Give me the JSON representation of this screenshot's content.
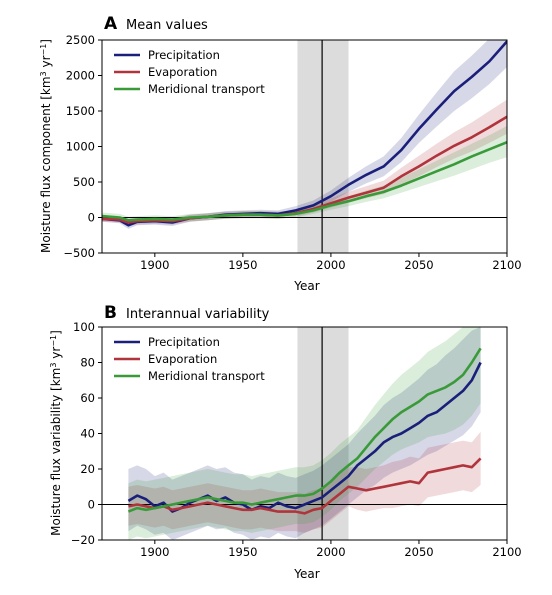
{
  "panels": [
    {
      "letter": "A",
      "title": "Mean values",
      "ylabel_prefix": "Moisture flux component [km",
      "ylabel_sup": "3",
      "ylabel_mid": " yr",
      "ylabel_sup2": "−1",
      "ylabel_suffix": "]",
      "xlabel": "Year"
    },
    {
      "letter": "B",
      "title": "Interannual variability",
      "ylabel_prefix": "Moisture flux variability [km",
      "ylabel_sup": "3",
      "ylabel_mid": " yr",
      "ylabel_sup2": "−1",
      "ylabel_suffix": "]",
      "xlabel": "Year"
    }
  ],
  "colors": {
    "precipitation": "#1a1f7a",
    "evaporation": "#b0343b",
    "meridional": "#3a9a3a",
    "shade": "#dcdcdc"
  },
  "chart_data": [
    {
      "type": "line",
      "title": "Mean values",
      "xlabel": "Year",
      "ylabel": "Moisture flux component [km3 yr−1]",
      "xlim": [
        1870,
        2100
      ],
      "ylim": [
        -500,
        2500
      ],
      "xticks": [
        1900,
        1950,
        2000,
        2050,
        2100
      ],
      "yticks": [
        -500,
        0,
        500,
        1000,
        1500,
        2000,
        2500
      ],
      "shaded_period": [
        1981,
        2010
      ],
      "vline": 1995,
      "hline": 0,
      "legend_position": "top-left",
      "x": [
        1870,
        1880,
        1885,
        1890,
        1900,
        1910,
        1920,
        1930,
        1940,
        1950,
        1960,
        1970,
        1980,
        1990,
        2000,
        2010,
        2020,
        2030,
        2040,
        2050,
        2060,
        2070,
        2080,
        2090,
        2100
      ],
      "series": [
        {
          "name": "Precipitation",
          "values": [
            -20,
            -40,
            -110,
            -60,
            -50,
            -70,
            -10,
            10,
            40,
            50,
            60,
            50,
            100,
            170,
            300,
            460,
            600,
            720,
            950,
            1250,
            1520,
            1780,
            1980,
            2200,
            2480
          ],
          "lower": [
            -60,
            -80,
            -160,
            -110,
            -100,
            -120,
            -60,
            -40,
            -10,
            0,
            10,
            0,
            50,
            110,
            220,
            360,
            480,
            580,
            780,
            1050,
            1280,
            1500,
            1680,
            1880,
            2120
          ],
          "upper": [
            20,
            0,
            -60,
            -10,
            0,
            -20,
            40,
            60,
            90,
            100,
            110,
            100,
            160,
            240,
            380,
            560,
            720,
            860,
            1120,
            1450,
            1760,
            2060,
            2280,
            2520,
            2500
          ]
        },
        {
          "name": "Evaporation",
          "values": [
            -20,
            -30,
            -70,
            -50,
            -40,
            -50,
            -10,
            10,
            30,
            40,
            40,
            30,
            60,
            120,
            200,
            280,
            350,
            420,
            580,
            720,
            870,
            1010,
            1130,
            1270,
            1420
          ],
          "lower": [
            -60,
            -70,
            -120,
            -100,
            -90,
            -100,
            -60,
            -40,
            -20,
            -10,
            -10,
            -20,
            10,
            70,
            140,
            210,
            270,
            330,
            460,
            580,
            710,
            830,
            930,
            1050,
            1180
          ],
          "upper": [
            20,
            10,
            -20,
            0,
            10,
            0,
            40,
            60,
            80,
            90,
            90,
            80,
            110,
            180,
            270,
            360,
            440,
            520,
            700,
            870,
            1040,
            1200,
            1340,
            1500,
            1660
          ]
        },
        {
          "name": "Meridional transport",
          "values": [
            20,
            0,
            -40,
            -30,
            -20,
            -30,
            0,
            10,
            30,
            40,
            40,
            30,
            50,
            100,
            170,
            230,
            300,
            360,
            450,
            550,
            650,
            750,
            860,
            960,
            1060
          ],
          "lower": [
            -30,
            -50,
            -90,
            -80,
            -70,
            -80,
            -50,
            -40,
            -20,
            -10,
            -10,
            -20,
            0,
            50,
            110,
            160,
            220,
            270,
            350,
            430,
            510,
            590,
            680,
            770,
            850
          ],
          "upper": [
            70,
            50,
            10,
            20,
            30,
            20,
            50,
            60,
            80,
            90,
            90,
            80,
            100,
            160,
            230,
            300,
            380,
            450,
            560,
            680,
            800,
            920,
            1040,
            1160,
            1290
          ]
        }
      ]
    },
    {
      "type": "line",
      "title": "Interannual variability",
      "xlabel": "Year",
      "ylabel": "Moisture flux variability [km3 yr−1]",
      "xlim": [
        1870,
        2100
      ],
      "ylim": [
        -20,
        100
      ],
      "xticks": [
        1900,
        1950,
        2000,
        2050,
        2100
      ],
      "yticks": [
        -20,
        0,
        20,
        40,
        60,
        80,
        100
      ],
      "shaded_period": [
        1981,
        2010
      ],
      "vline": 1995,
      "hline": 0,
      "legend_position": "top-left",
      "x": [
        1885,
        1890,
        1895,
        1900,
        1905,
        1910,
        1915,
        1920,
        1925,
        1930,
        1935,
        1940,
        1945,
        1950,
        1955,
        1960,
        1965,
        1970,
        1975,
        1980,
        1985,
        1990,
        1995,
        2000,
        2005,
        2010,
        2015,
        2020,
        2025,
        2030,
        2035,
        2040,
        2045,
        2050,
        2055,
        2060,
        2065,
        2070,
        2075,
        2080,
        2085
      ],
      "series": [
        {
          "name": "Precipitation",
          "values": [
            2,
            5,
            3,
            -1,
            1,
            -4,
            -2,
            1,
            3,
            5,
            2,
            4,
            1,
            0,
            -3,
            -1,
            -2,
            1,
            -1,
            -2,
            0,
            2,
            4,
            8,
            12,
            16,
            22,
            26,
            30,
            35,
            38,
            40,
            43,
            46,
            50,
            52,
            56,
            60,
            64,
            70,
            80
          ],
          "lower": [
            -15,
            -12,
            -14,
            -17,
            -16,
            -20,
            -18,
            -16,
            -14,
            -12,
            -14,
            -13,
            -16,
            -17,
            -20,
            -18,
            -19,
            -16,
            -18,
            -19,
            -16,
            -14,
            -12,
            -8,
            -4,
            0,
            4,
            8,
            11,
            15,
            18,
            20,
            22,
            25,
            28,
            30,
            33,
            36,
            39,
            44,
            52
          ],
          "upper": [
            20,
            22,
            20,
            16,
            18,
            14,
            16,
            18,
            20,
            22,
            20,
            21,
            18,
            17,
            14,
            16,
            15,
            18,
            16,
            15,
            17,
            19,
            22,
            26,
            30,
            34,
            40,
            45,
            50,
            56,
            60,
            63,
            67,
            71,
            76,
            79,
            84,
            88,
            93,
            98,
            100
          ]
        },
        {
          "name": "Evaporation",
          "values": [
            -1,
            0,
            -1,
            -2,
            -1,
            -3,
            -2,
            -1,
            0,
            1,
            0,
            -1,
            -2,
            -3,
            -3,
            -2,
            -3,
            -4,
            -4,
            -4,
            -5,
            -3,
            -2,
            2,
            6,
            10,
            9,
            8,
            9,
            10,
            11,
            12,
            13,
            12,
            18,
            19,
            20,
            21,
            22,
            21,
            26
          ],
          "lower": [
            -12,
            -11,
            -12,
            -13,
            -12,
            -14,
            -13,
            -12,
            -11,
            -10,
            -11,
            -12,
            -13,
            -14,
            -14,
            -13,
            -14,
            -15,
            -15,
            -15,
            -16,
            -14,
            -13,
            -9,
            -5,
            -1,
            -3,
            -4,
            -3,
            -2,
            -2,
            -1,
            0,
            -1,
            4,
            5,
            6,
            7,
            8,
            7,
            11
          ],
          "upper": [
            10,
            11,
            10,
            9,
            10,
            8,
            9,
            10,
            11,
            12,
            11,
            10,
            9,
            8,
            8,
            9,
            8,
            7,
            7,
            7,
            6,
            8,
            9,
            13,
            17,
            21,
            21,
            20,
            21,
            22,
            24,
            25,
            27,
            26,
            32,
            33,
            34,
            35,
            36,
            35,
            41
          ]
        },
        {
          "name": "Meridional transport",
          "values": [
            -4,
            -2,
            -3,
            -2,
            -1,
            0,
            1,
            2,
            3,
            4,
            3,
            2,
            1,
            1,
            0,
            1,
            2,
            3,
            4,
            5,
            5,
            6,
            9,
            13,
            18,
            22,
            26,
            32,
            38,
            43,
            48,
            52,
            55,
            58,
            62,
            64,
            66,
            69,
            73,
            80,
            88
          ],
          "lower": [
            -20,
            -18,
            -19,
            -18,
            -17,
            -16,
            -15,
            -14,
            -13,
            -12,
            -13,
            -14,
            -15,
            -15,
            -16,
            -15,
            -14,
            -13,
            -12,
            -11,
            -11,
            -10,
            -7,
            -3,
            2,
            6,
            10,
            15,
            20,
            24,
            28,
            31,
            33,
            35,
            38,
            39,
            40,
            42,
            45,
            50,
            57
          ],
          "upper": [
            12,
            14,
            13,
            14,
            15,
            16,
            17,
            18,
            19,
            20,
            19,
            18,
            17,
            17,
            16,
            17,
            18,
            19,
            20,
            21,
            21,
            22,
            25,
            29,
            34,
            38,
            42,
            49,
            56,
            62,
            68,
            73,
            77,
            81,
            86,
            89,
            92,
            96,
            100,
            100,
            100
          ]
        }
      ]
    }
  ]
}
